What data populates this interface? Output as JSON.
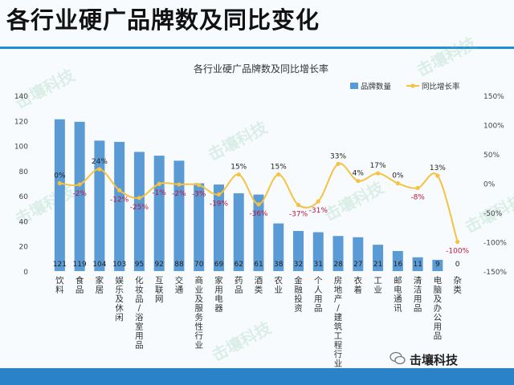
{
  "slide_title": "各行业硬广品牌数及同比变化",
  "brand_label": "击壤科技",
  "watermark_text": "击壤科技",
  "colors": {
    "bar": "#5b9bd5",
    "line": "#f5c242",
    "neg_label": "#c0143c",
    "pos_label": "#222222",
    "accent": "#1f8fd6"
  },
  "chart_data": {
    "type": "bar",
    "title": "各行业硬广品牌数及同比增长率",
    "categories": [
      "饮料",
      "食品",
      "家居",
      "娱乐及休闲",
      "化妆品/浴室用品",
      "互联网",
      "交通",
      "商业及服务性行业",
      "家用电器",
      "药品",
      "酒类",
      "农业",
      "金融投资",
      "个人用品",
      "房地产/建筑工程行业",
      "衣着",
      "工业",
      "邮电通讯",
      "清洁用品",
      "电脑及办公用品",
      "杂类"
    ],
    "series": [
      {
        "name": "品牌数量",
        "type": "bar",
        "axis": "left",
        "values": [
          121,
          119,
          104,
          103,
          95,
          92,
          88,
          70,
          69,
          62,
          61,
          38,
          32,
          31,
          28,
          27,
          21,
          16,
          11,
          9,
          0
        ]
      },
      {
        "name": "同比增长率",
        "type": "line",
        "axis": "right",
        "values": [
          0,
          -2,
          24,
          -12,
          -25,
          -1,
          -2,
          -3,
          -19,
          15,
          -36,
          15,
          -37,
          -31,
          33,
          4,
          17,
          0,
          -8,
          13,
          -100
        ],
        "labels": [
          "0%",
          "-2%",
          "24%",
          "-12%",
          "-25%",
          "-1%",
          "-2%",
          "-3%",
          "-19%",
          "15%",
          "-36%",
          "15%",
          "-37%",
          "-31%",
          "33%",
          "4%",
          "17%",
          "0%",
          "-8%",
          "13%",
          "-100%"
        ]
      }
    ],
    "ylim": [
      0,
      140
    ],
    "yticks": [
      "0",
      "20",
      "40",
      "60",
      "80",
      "100",
      "120",
      "140"
    ],
    "y2lim": [
      -150,
      150
    ],
    "y2ticks": [
      "-150%",
      "-100%",
      "-50%",
      "0%",
      "50%",
      "100%",
      "150%"
    ],
    "legend": "top-right",
    "grid": false
  }
}
